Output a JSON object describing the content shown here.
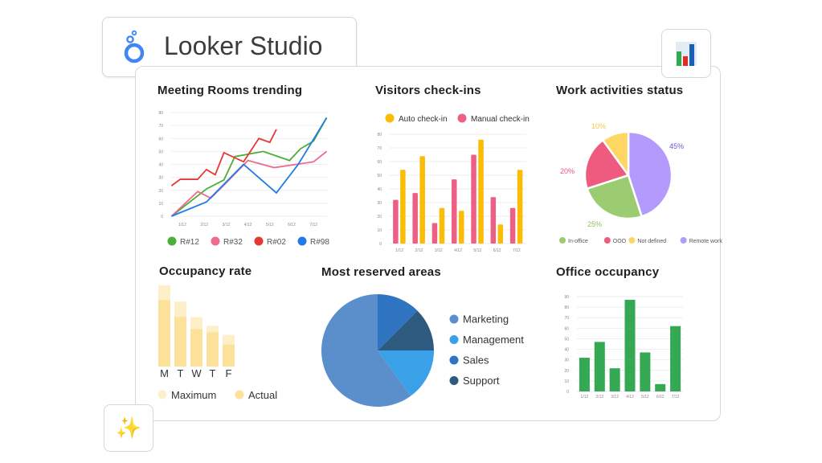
{
  "app": {
    "name": "Looker Studio",
    "logo_color": "#4285f4"
  },
  "icons": {
    "report": "bar-chart-icon",
    "ai": "sparkles-icon",
    "ai_glyph": "✨"
  },
  "chart_data": [
    {
      "id": "meeting_rooms",
      "type": "line",
      "title": "Meeting Rooms trending",
      "x_ticks": [
        "1/12",
        "2/12",
        "3/12",
        "4/12",
        "5/12",
        "6/12",
        "7/12"
      ],
      "xlim": [
        0.5,
        7.6
      ],
      "ylim": [
        0,
        80
      ],
      "y_ticks": [
        0,
        10,
        20,
        30,
        40,
        50,
        60,
        70,
        80
      ],
      "grid": true,
      "legend": "bottom",
      "series": [
        {
          "name": "R#12",
          "color": "#4caf3a",
          "points": [
            [
              0.5,
              0
            ],
            [
              2.1,
              21
            ],
            [
              2.9,
              28
            ],
            [
              3.4,
              46
            ],
            [
              4.7,
              50
            ],
            [
              5.9,
              43
            ],
            [
              6.4,
              52
            ],
            [
              7.0,
              58
            ],
            [
              7.6,
              76
            ]
          ]
        },
        {
          "name": "R#32",
          "color": "#ee6a8e",
          "points": [
            [
              0.5,
              0
            ],
            [
              1.7,
              19
            ],
            [
              2.3,
              14
            ],
            [
              2.9,
              24
            ],
            [
              4.0,
              43
            ],
            [
              5.2,
              37.5
            ],
            [
              7.0,
              42
            ],
            [
              7.6,
              50
            ]
          ]
        },
        {
          "name": "R#02",
          "color": "#e53935",
          "points": [
            [
              0.5,
              23.5
            ],
            [
              0.9,
              28.5
            ],
            [
              1.7,
              28.5
            ],
            [
              2.1,
              36
            ],
            [
              2.5,
              32
            ],
            [
              2.9,
              49
            ],
            [
              3.8,
              42
            ],
            [
              4.5,
              60
            ],
            [
              5.0,
              57
            ],
            [
              5.3,
              67
            ]
          ]
        },
        {
          "name": "R#98",
          "color": "#1e7be6",
          "points": [
            [
              0.5,
              0
            ],
            [
              2.1,
              11
            ],
            [
              3.8,
              40
            ],
            [
              5.3,
              18
            ],
            [
              6.3,
              40
            ],
            [
              7.6,
              76
            ]
          ]
        }
      ]
    },
    {
      "id": "visitors",
      "type": "bar",
      "title": "Visitors check-ins",
      "categories": [
        "1/12",
        "2/12",
        "3/12",
        "4/12",
        "5/12",
        "6/12",
        "7/12"
      ],
      "ylim": [
        0,
        80
      ],
      "y_ticks": [
        0,
        10,
        20,
        30,
        40,
        50,
        60,
        70,
        80
      ],
      "grid": true,
      "legend": "top",
      "series": [
        {
          "name": "Manual check-in",
          "color": "#ee5f86",
          "values": [
            32,
            37,
            15,
            47,
            65,
            34,
            26
          ]
        },
        {
          "name": "Auto check-in",
          "color": "#fbbc05",
          "values": [
            54,
            64,
            26,
            24,
            76,
            14,
            54
          ]
        }
      ],
      "legend_order": [
        "Auto check-in",
        "Manual check-in"
      ]
    },
    {
      "id": "work_status",
      "type": "pie",
      "title": "Work activities status",
      "legend": "bottom",
      "slices": [
        {
          "label": "Remote work",
          "value": 45,
          "text": "45%",
          "color": "#b39afd",
          "text_color": "#6c4fd8"
        },
        {
          "label": "In-office",
          "value": 25,
          "text": "25%",
          "color": "#9ccc72",
          "text_color": "#8bbf60"
        },
        {
          "label": "OOO",
          "value": 20,
          "text": "20%",
          "color": "#ef5b7f",
          "text_color": "#e8577a"
        },
        {
          "label": "Not defined",
          "value": 10,
          "text": "10%",
          "color": "#fdd663",
          "text_color": "#f5c842"
        }
      ],
      "legend_order": [
        "In-office",
        "OOO",
        "Not defined",
        "Remote work"
      ]
    },
    {
      "id": "occupancy_rate",
      "type": "bar",
      "title": "Occupancy rate",
      "categories": [
        "M",
        "T",
        "W",
        "T",
        "F"
      ],
      "legend": "bottom",
      "series": [
        {
          "name": "Maximum",
          "color": "#fdefc8",
          "values": [
            100,
            80,
            61,
            50,
            39
          ]
        },
        {
          "name": "Actual",
          "color": "#fce19a",
          "values": [
            82,
            61,
            46,
            42,
            27
          ]
        }
      ]
    },
    {
      "id": "reserved_areas",
      "type": "pie",
      "title": "Most reserved areas",
      "legend": "right",
      "slices": [
        {
          "label": "Sales",
          "value": 12.5,
          "color": "#2e74c0"
        },
        {
          "label": "Support",
          "value": 12.5,
          "color": "#2f5a80"
        },
        {
          "label": "Management",
          "value": 15,
          "color": "#3aa0e8"
        },
        {
          "label": "Marketing",
          "value": 60,
          "color": "#5b8fcc"
        }
      ],
      "legend_order": [
        "Marketing",
        "Management",
        "Sales",
        "Support"
      ]
    },
    {
      "id": "office_occupancy",
      "type": "bar",
      "title": "Office occupancy",
      "categories": [
        "1/12",
        "2/12",
        "3/12",
        "4/12",
        "5/12",
        "6/12",
        "7/12"
      ],
      "ylim": [
        0,
        90
      ],
      "y_ticks": [
        0,
        10,
        20,
        30,
        40,
        50,
        60,
        70,
        80,
        90
      ],
      "grid": true,
      "series": [
        {
          "color": "#34a853",
          "values": [
            32,
            47,
            22,
            87,
            37,
            7,
            62
          ]
        }
      ]
    }
  ]
}
